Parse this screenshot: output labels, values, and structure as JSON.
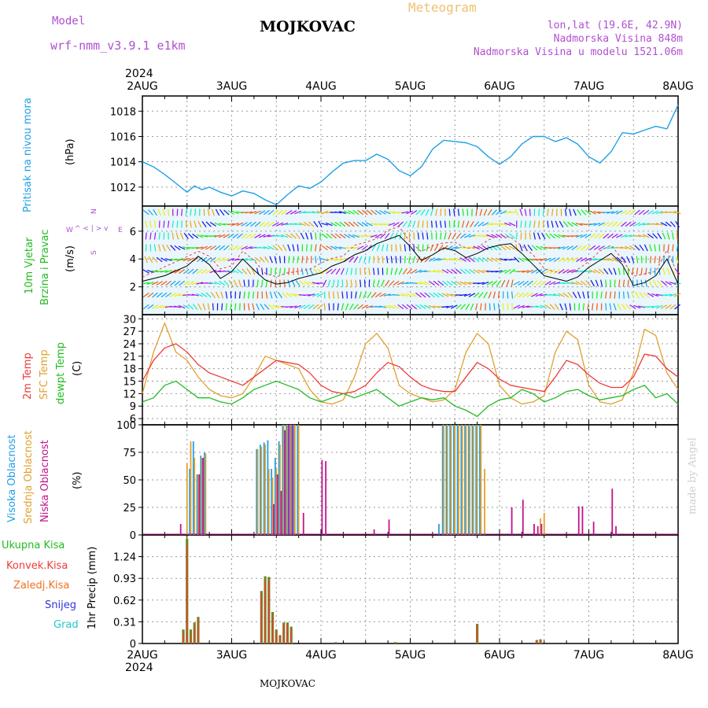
{
  "header": {
    "model_label": "Model",
    "model_name": "wrf-nmm_v3.9.1 e1km",
    "station": "MOJKOVAC",
    "meteogram_label": "Meteogram",
    "lonlat": "lon,lat (19.6E, 42.9N)",
    "altitude": "Nadmorska Visina 848m",
    "model_altitude": "Nadmorska Visina u modelu 1521.06m"
  },
  "footer": {
    "station": "MOJKOVAC",
    "credit": "made by Angel"
  },
  "axis": {
    "year": "2024",
    "dates": [
      "2AUG",
      "3AUG",
      "4AUG",
      "5AUG",
      "6AUG",
      "7AUG",
      "8AUG"
    ]
  },
  "colors": {
    "pressure": "#1ea0e8",
    "t2m": "#ee3b3b",
    "sfc": "#e0a030",
    "dewpt": "#22bb22",
    "high_cloud": "#1ea0e8",
    "mid_cloud": "#e0a030",
    "low_cloud": "#c0148c",
    "total_precip": "#22bb22",
    "conv_precip": "#ee3b3b",
    "frz_precip": "#f07020",
    "snow": "#3333dd",
    "hail": "#20c8c8"
  },
  "panel_labels": {
    "pressure": {
      "name": "Pritisak na nivou mora",
      "unit": "(hPa)"
    },
    "wind": {
      "name1": "10m Vjetar",
      "name2": "Brzina i Pravac",
      "unit": "(m/s)",
      "compass_n": "N",
      "compass_s": "S",
      "compass_w": "W",
      "compass_e": "E",
      "compass_sym": "^ < | > v"
    },
    "temp": {
      "t2m": "2m Temp",
      "sfc": "SFC Temp",
      "dewpt": "dewpt Temp",
      "unit": "(C)"
    },
    "cloud": {
      "high": "Visoka Oblacnost",
      "mid": "Srednja Oblacnost",
      "low": "Niska Oblacnost",
      "unit": "(%)"
    },
    "precip": {
      "total": "Ukupna Kisa",
      "conv": "Konvek.Kisa",
      "frz": "Zaledj.Kisa",
      "snow": "Snijeg",
      "hail": "Grad",
      "unit": "1hr Precip (mm)"
    }
  },
  "chart_data": [
    {
      "type": "line",
      "panel": "pressure",
      "ylabel": "(hPa)",
      "yticks": [
        "1012",
        "1014",
        "1016",
        "1018"
      ],
      "ylim": [
        1010.5,
        1019.2
      ],
      "x_unit": "hours from 2AUG 00",
      "xlim": [
        0,
        144
      ],
      "series": [
        {
          "name": "Pritisak na nivou mora",
          "x": [
            0,
            3,
            6,
            9,
            12,
            14,
            16,
            18,
            21,
            24,
            27,
            30,
            33,
            36,
            39,
            42,
            45,
            48,
            51,
            54,
            57,
            60,
            63,
            66,
            69,
            72,
            75,
            78,
            81,
            84,
            87,
            90,
            93,
            96,
            99,
            102,
            105,
            108,
            111,
            114,
            117,
            120,
            123,
            126,
            129,
            132,
            135,
            138,
            141,
            144
          ],
          "values": [
            1014.0,
            1013.6,
            1013.0,
            1012.3,
            1011.6,
            1012.1,
            1011.8,
            1012.0,
            1011.6,
            1011.3,
            1011.7,
            1011.5,
            1011.0,
            1010.6,
            1011.4,
            1012.1,
            1011.9,
            1012.4,
            1013.2,
            1013.9,
            1014.1,
            1014.1,
            1014.6,
            1014.2,
            1013.3,
            1012.9,
            1013.6,
            1015.0,
            1015.7,
            1015.6,
            1015.5,
            1015.2,
            1014.4,
            1013.8,
            1014.4,
            1015.4,
            1016.0,
            1016.0,
            1015.6,
            1015.9,
            1015.4,
            1014.4,
            1013.9,
            1014.8,
            1016.3,
            1016.2,
            1016.5,
            1016.8,
            1016.6,
            1018.5
          ]
        }
      ]
    },
    {
      "type": "line",
      "panel": "wind",
      "ylabel": "(m/s)",
      "yticks": [
        "2",
        "4",
        "6"
      ],
      "ylim": [
        0,
        7.8
      ],
      "xlim": [
        0,
        144
      ],
      "series": [
        {
          "name": "10m Vjetar",
          "x": [
            0,
            6,
            12,
            15,
            18,
            21,
            24,
            27,
            30,
            33,
            36,
            39,
            42,
            45,
            48,
            51,
            54,
            57,
            60,
            63,
            66,
            69,
            72,
            75,
            78,
            81,
            84,
            87,
            90,
            93,
            96,
            99,
            102,
            105,
            108,
            111,
            114,
            117,
            120,
            123,
            126,
            129,
            132,
            135,
            138,
            141,
            144
          ],
          "values": [
            2.4,
            2.8,
            3.5,
            4.2,
            3.6,
            2.6,
            3.1,
            4.0,
            3.2,
            2.5,
            2.2,
            2.3,
            2.6,
            2.8,
            3.0,
            3.5,
            3.8,
            4.3,
            4.6,
            5.1,
            5.4,
            5.7,
            4.9,
            3.9,
            4.3,
            4.8,
            4.6,
            4.1,
            4.4,
            4.8,
            5.0,
            5.1,
            4.4,
            3.6,
            2.8,
            2.6,
            2.4,
            2.7,
            3.4,
            3.9,
            4.4,
            3.6,
            2.1,
            2.3,
            2.8,
            4.0,
            2.2
          ]
        }
      ]
    },
    {
      "type": "line",
      "panel": "temperature",
      "ylabel": "(C)",
      "yticks": [
        "6",
        "9",
        "12",
        "15",
        "18",
        "21",
        "24",
        "27",
        "30"
      ],
      "ylim": [
        4.5,
        31
      ],
      "xlim": [
        0,
        144
      ],
      "series": [
        {
          "name": "2m Temp",
          "x": [
            0,
            3,
            6,
            9,
            12,
            15,
            18,
            21,
            24,
            27,
            30,
            33,
            36,
            39,
            42,
            45,
            48,
            51,
            54,
            57,
            60,
            63,
            66,
            69,
            72,
            75,
            78,
            81,
            84,
            87,
            90,
            93,
            96,
            99,
            102,
            105,
            108,
            111,
            114,
            117,
            120,
            123,
            126,
            129,
            132,
            135,
            138,
            141,
            144
          ],
          "values": [
            15,
            20,
            23,
            24,
            22,
            19,
            17,
            16,
            15,
            14,
            16,
            18,
            20,
            19.5,
            19,
            17,
            14,
            12.5,
            12,
            12.5,
            14,
            17,
            19.5,
            18.5,
            16,
            14,
            13,
            12.5,
            12.5,
            16,
            19.5,
            18,
            15.5,
            14,
            13.5,
            13,
            12.5,
            16,
            20,
            19,
            16.5,
            14.5,
            13.5,
            13.5,
            16,
            21.5,
            21,
            18,
            16
          ]
        },
        {
          "name": "SFC Temp",
          "x": [
            0,
            3,
            6,
            9,
            12,
            15,
            18,
            21,
            24,
            27,
            30,
            33,
            36,
            39,
            42,
            45,
            48,
            51,
            54,
            57,
            60,
            63,
            66,
            69,
            72,
            75,
            78,
            81,
            84,
            87,
            90,
            93,
            96,
            99,
            102,
            105,
            108,
            111,
            114,
            117,
            120,
            123,
            126,
            129,
            132,
            135,
            138,
            141,
            144
          ],
          "values": [
            12,
            22,
            29,
            22,
            20,
            16,
            13,
            11.5,
            11,
            12,
            16,
            21,
            20,
            19,
            18,
            13,
            10,
            9.5,
            10.5,
            16,
            24,
            26.5,
            23,
            14,
            12,
            11,
            10,
            10.5,
            13,
            22,
            26.5,
            24,
            14,
            11,
            9.5,
            10,
            11.5,
            22,
            27,
            25,
            14,
            10,
            9.5,
            10.5,
            17,
            27.5,
            26,
            17,
            13
          ]
        },
        {
          "name": "dewpt Temp",
          "x": [
            0,
            3,
            6,
            9,
            12,
            15,
            18,
            21,
            24,
            27,
            30,
            33,
            36,
            39,
            42,
            45,
            48,
            51,
            54,
            57,
            60,
            63,
            66,
            69,
            72,
            75,
            78,
            81,
            84,
            87,
            90,
            93,
            96,
            99,
            102,
            105,
            108,
            111,
            114,
            117,
            120,
            123,
            126,
            129,
            132,
            135,
            138,
            141,
            144
          ],
          "values": [
            10,
            11,
            14,
            15,
            13,
            11,
            11,
            10,
            9.5,
            11,
            13,
            14,
            15,
            14,
            13,
            11,
            10,
            11,
            12,
            11,
            12,
            13,
            11,
            9,
            10,
            11,
            10.5,
            11,
            9,
            8,
            6.5,
            9,
            10.5,
            11,
            13,
            12,
            10,
            11,
            12.5,
            13,
            11.5,
            10.5,
            11,
            11.5,
            13,
            14,
            11,
            12,
            9.5
          ]
        }
      ]
    },
    {
      "type": "bar",
      "panel": "cloud",
      "ylabel": "(%)",
      "yticks": [
        "0",
        "25",
        "50",
        "75",
        "100"
      ],
      "ylim": [
        0,
        100
      ],
      "xlim": [
        0,
        144
      ],
      "series": [
        {
          "name": "Visoka Oblacnost",
          "x": [
            13,
            14,
            15,
            16,
            17,
            31,
            32,
            33,
            34,
            35,
            36,
            37,
            38,
            39,
            40,
            41,
            42,
            80,
            81,
            82,
            83,
            84,
            85,
            86,
            87,
            88,
            89,
            90,
            91
          ],
          "values": [
            60,
            85,
            55,
            72,
            75,
            78,
            82,
            84,
            86,
            60,
            70,
            85,
            100,
            100,
            100,
            100,
            100,
            10,
            100,
            100,
            100,
            100,
            100,
            100,
            100,
            100,
            100,
            100,
            100
          ]
        },
        {
          "name": "Srednja Oblacnost",
          "x": [
            12,
            13,
            14,
            15,
            16,
            17,
            31,
            32,
            33,
            34,
            35,
            36,
            37,
            38,
            39,
            40,
            41,
            42,
            80,
            81,
            82,
            83,
            84,
            85,
            86,
            87,
            88,
            89,
            90,
            91,
            92,
            107,
            108
          ],
          "values": [
            65,
            85,
            70,
            55,
            70,
            74,
            78,
            80,
            82,
            60,
            52,
            60,
            82,
            100,
            100,
            100,
            100,
            100,
            0,
            100,
            100,
            100,
            100,
            100,
            100,
            100,
            100,
            100,
            100,
            100,
            60,
            15,
            20
          ]
        },
        {
          "name": "Niska Oblacnost",
          "x": [
            10,
            15,
            16,
            35,
            36,
            37,
            38,
            39,
            40,
            43,
            48,
            49,
            62,
            66,
            99,
            102,
            105,
            106,
            107,
            117,
            118,
            121,
            126,
            127
          ],
          "values": [
            10,
            55,
            70,
            28,
            55,
            40,
            95,
            100,
            100,
            20,
            68,
            67,
            5,
            14,
            25,
            32,
            10,
            8,
            10,
            26,
            26,
            12,
            42,
            8
          ]
        }
      ]
    },
    {
      "type": "bar",
      "panel": "precipitation",
      "ylabel": "1hr Precip (mm)",
      "yticks": [
        "0",
        "0.31",
        "0.62",
        "0.93",
        "1.24"
      ],
      "ylim": [
        0,
        1.55
      ],
      "xlim": [
        0,
        144
      ],
      "series": [
        {
          "name": "Ukupna Kisa",
          "x": [
            11,
            12,
            13,
            14,
            15,
            32,
            33,
            34,
            35,
            36,
            37,
            38,
            39,
            40,
            52,
            68,
            90,
            106,
            107
          ],
          "values": [
            0.2,
            1.5,
            0.2,
            0.3,
            0.38,
            0.75,
            0.96,
            0.95,
            0.45,
            0.2,
            0.12,
            0.3,
            0.3,
            0.24,
            0.02,
            0.02,
            0.28,
            0.05,
            0.06
          ]
        },
        {
          "name": "Konvek.Kisa",
          "x": [
            11,
            12,
            13,
            14,
            15,
            32,
            33,
            34,
            35,
            36,
            37,
            38,
            39,
            40,
            90,
            106,
            107
          ],
          "values": [
            0.15,
            1.4,
            0.1,
            0.25,
            0.35,
            0.7,
            0.9,
            0.9,
            0.4,
            0.18,
            0.1,
            0.28,
            0.28,
            0.2,
            0.26,
            0.05,
            0.06
          ]
        }
      ]
    }
  ]
}
